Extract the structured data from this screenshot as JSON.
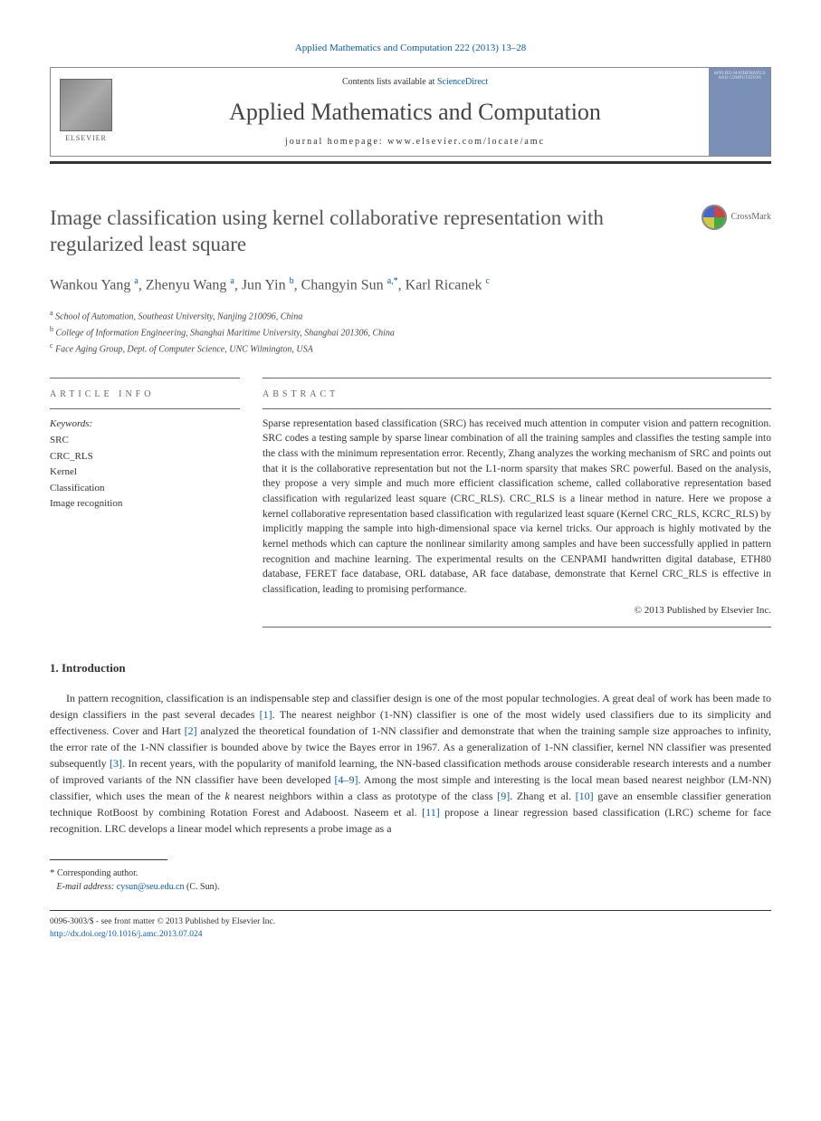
{
  "header": {
    "journal_ref": "Applied Mathematics and Computation 222 (2013) 13–28",
    "contents_prefix": "Contents lists available at ",
    "contents_link": "ScienceDirect",
    "journal_name": "Applied Mathematics and Computation",
    "homepage_label": "journal homepage: www.elsevier.com/locate/amc",
    "elsevier_label": "ELSEVIER",
    "cover_text": "APPLIED MATHEMATICS AND COMPUTATION"
  },
  "colors": {
    "link": "#0a5ca8",
    "text": "#333333",
    "heading": "#555555",
    "rule": "#666666",
    "cover_bg": "#7a8fb5"
  },
  "crossmark_label": "CrossMark",
  "article": {
    "title": "Image classification using kernel collaborative representation with regularized least square",
    "authors_html": "Wankou Yang <sup>a</sup>, Zhenyu Wang <sup>a</sup>, Jun Yin <sup>b</sup>, Changyin Sun <sup>a,*</sup>, Karl Ricanek <sup>c</sup>"
  },
  "affiliations": [
    {
      "sup": "a",
      "text": "School of Automation, Southeast University, Nanjing 210096, China"
    },
    {
      "sup": "b",
      "text": "College of Information Engineering, Shanghai Maritime University, Shanghai 201306, China"
    },
    {
      "sup": "c",
      "text": "Face Aging Group, Dept. of Computer Science, UNC Wilmington, USA"
    }
  ],
  "info": {
    "section_label": "ARTICLE INFO",
    "keywords_label": "Keywords:",
    "keywords": [
      "SRC",
      "CRC_RLS",
      "Kernel",
      "Classification",
      "Image recognition"
    ]
  },
  "abstract": {
    "section_label": "ABSTRACT",
    "text": "Sparse representation based classification (SRC) has received much attention in computer vision and pattern recognition. SRC codes a testing sample by sparse linear combination of all the training samples and classifies the testing sample into the class with the minimum representation error. Recently, Zhang analyzes the working mechanism of SRC and points out that it is the collaborative representation but not the L1-norm sparsity that makes SRC powerful. Based on the analysis, they propose a very simple and much more efficient classification scheme, called collaborative representation based classification with regularized least square (CRC_RLS). CRC_RLS is a linear method in nature. Here we propose a kernel collaborative representation based classification with regularized least square (Kernel CRC_RLS, KCRC_RLS) by implicitly mapping the sample into high-dimensional space via kernel tricks. Our approach is highly motivated by the kernel methods which can capture the nonlinear similarity among samples and have been successfully applied in pattern recognition and machine learning. The experimental results on the CENPAMI handwritten digital database, ETH80 database, FERET face database, ORL database, AR face database, demonstrate that Kernel CRC_RLS is effective in classification, leading to promising performance.",
    "copyright": "© 2013 Published by Elsevier Inc."
  },
  "section1": {
    "heading": "1. Introduction",
    "para": "In pattern recognition, classification is an indispensable step and classifier design is one of the most popular technologies. A great deal of work has been made to design classifiers in the past several decades [1]. The nearest neighbor (1-NN) classifier is one of the most widely used classifiers due to its simplicity and effectiveness. Cover and Hart [2] analyzed the theoretical foundation of 1-NN classifier and demonstrate that when the training sample size approaches to infinity, the error rate of the 1-NN classifier is bounded above by twice the Bayes error in 1967. As a generalization of 1-NN classifier, kernel NN classifier was presented subsequently [3]. In recent years, with the popularity of manifold learning, the NN-based classification methods arouse considerable research interests and a number of improved variants of the NN classifier have been developed [4–9]. Among the most simple and interesting is the local mean based nearest neighbor (LM-NN) classifier, which uses the mean of the k nearest neighbors within a class as prototype of the class [9]. Zhang et al. [10] gave an ensemble classifier generation technique RotBoost by combining Rotation Forest and Adaboost. Naseem et al. [11] propose a linear regression based classification (LRC) scheme for face recognition. LRC develops a linear model which represents a probe image as a",
    "refs": [
      "[1]",
      "[2]",
      "[3]",
      "[4–9]",
      "[9]",
      "[10]",
      "[11]"
    ]
  },
  "footnote": {
    "star": "*",
    "corresponding": "Corresponding author.",
    "email_label": "E-mail address:",
    "email": "cysun@seu.edu.cn",
    "email_name": "(C. Sun)."
  },
  "bottom": {
    "issn_line": "0096-3003/$ - see front matter © 2013 Published by Elsevier Inc.",
    "doi": "http://dx.doi.org/10.1016/j.amc.2013.07.024"
  }
}
